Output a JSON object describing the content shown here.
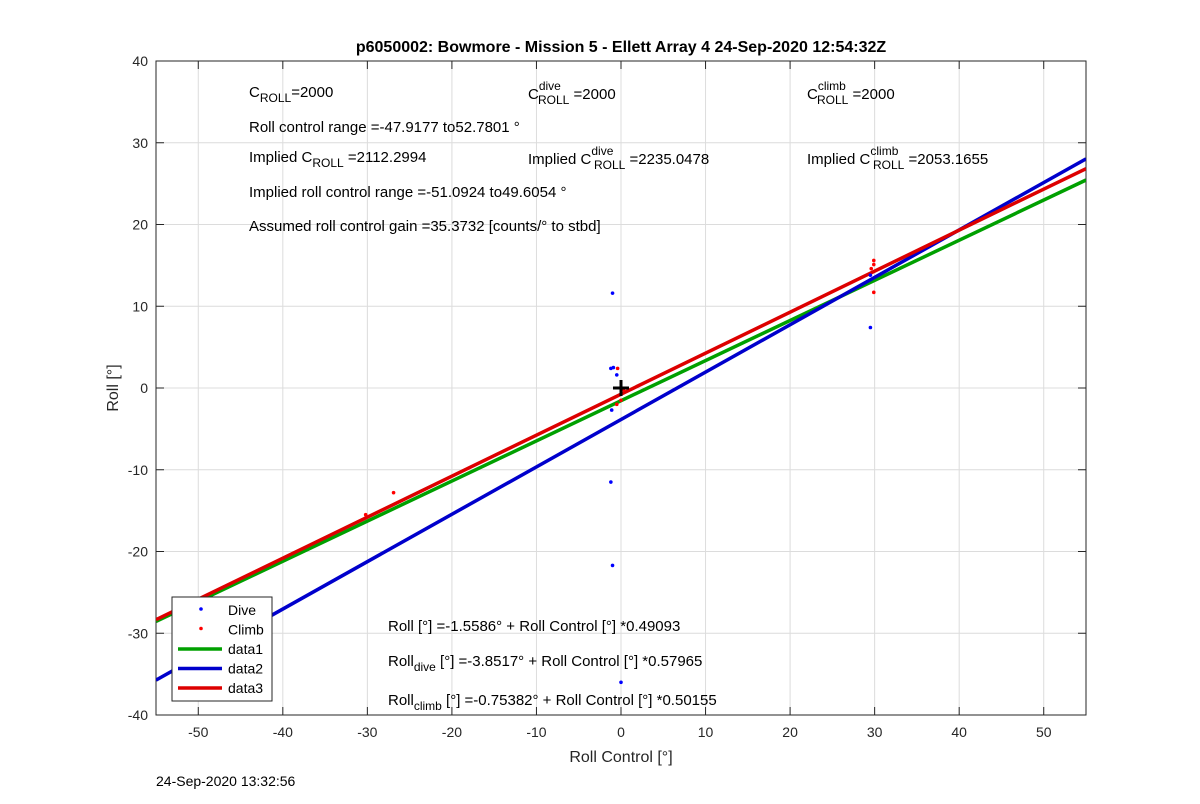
{
  "chart_data": {
    "type": "scatter",
    "title": "p6050002: Bowmore - Mission 5 - Ellett Array 4 24-Sep-2020 12:54:32Z",
    "xlabel": "Roll Control [°]",
    "ylabel": "Roll [°]",
    "xlim": [
      -55,
      55
    ],
    "ylim": [
      -40,
      40
    ],
    "xticks": [
      -50,
      -40,
      -30,
      -20,
      -10,
      0,
      10,
      20,
      30,
      40,
      50
    ],
    "yticks": [
      -40,
      -30,
      -20,
      -10,
      0,
      10,
      20,
      30,
      40
    ],
    "grid": true,
    "legend_position": "bottom-left",
    "series": [
      {
        "name": "Dive",
        "kind": "points",
        "color": "#0000ff",
        "points": [
          [
            -1.0,
            11.6
          ],
          [
            -1.2,
            2.4
          ],
          [
            -0.9,
            2.5
          ],
          [
            -0.5,
            1.6
          ],
          [
            -1.1,
            -2.7
          ],
          [
            -1.2,
            -11.5
          ],
          [
            -1.0,
            -21.7
          ],
          [
            0.0,
            -36.0
          ],
          [
            29.5,
            13.8
          ],
          [
            29.5,
            7.4
          ]
        ]
      },
      {
        "name": "Climb",
        "kind": "points",
        "color": "#ff0000",
        "points": [
          [
            -0.4,
            2.4
          ],
          [
            0.3,
            -0.2
          ],
          [
            0.0,
            -1.5
          ],
          [
            -0.5,
            -2.0
          ],
          [
            -26.9,
            -12.8
          ],
          [
            -30.2,
            -15.5
          ],
          [
            29.9,
            15.6
          ],
          [
            29.9,
            15.1
          ],
          [
            29.9,
            11.7
          ],
          [
            29.6,
            14.6
          ]
        ]
      },
      {
        "name": "data1",
        "kind": "line",
        "color": "#00a000",
        "intercept": -1.5586,
        "slope": 0.49093
      },
      {
        "name": "data2",
        "kind": "line",
        "color": "#0000cc",
        "intercept": -3.8517,
        "slope": 0.57965
      },
      {
        "name": "data3",
        "kind": "line",
        "color": "#dd0000",
        "intercept": -0.75382,
        "slope": 0.50155
      }
    ],
    "origin_marker": {
      "x": 0,
      "y": 0,
      "symbol": "+"
    },
    "annotations": {
      "c_roll": {
        "pre": "C",
        "sub": "ROLL",
        "post": "=2000"
      },
      "c_roll_dive": {
        "pre": "C",
        "sup": "dive",
        "sub": "ROLL",
        "post": " =2000"
      },
      "c_roll_climb": {
        "pre": "C",
        "sup": "climb",
        "sub": "ROLL",
        "post": " =2000"
      },
      "roll_range": "Roll control range =-47.9177 to52.7801 °",
      "implied_c_roll": {
        "pre": "Implied C",
        "sub": "ROLL",
        "post": " =2112.2994"
      },
      "implied_c_roll_dive": {
        "pre": "Implied C",
        "sup": "dive",
        "sub": "ROLL",
        "post": " =2235.0478"
      },
      "implied_c_roll_climb": {
        "pre": "Implied C",
        "sup": "climb",
        "sub": "ROLL",
        "post": " =2053.1655"
      },
      "implied_range": "Implied roll control range =-51.0924 to49.6054 °",
      "gain": "Assumed roll control gain =35.3732 [counts/° to stbd]",
      "fit_all": "Roll [°] =-1.5586° + Roll Control [°] *0.49093",
      "fit_dive": {
        "pre": "Roll",
        "sub": "dive",
        "post": " [°] =-3.8517° + Roll Control [°] *0.57965"
      },
      "fit_climb": {
        "pre": "Roll",
        "sub": "climb",
        "post": " [°] =-0.75382° + Roll Control [°] *0.50155"
      }
    }
  },
  "timestamp": "24-Sep-2020 13:32:56"
}
